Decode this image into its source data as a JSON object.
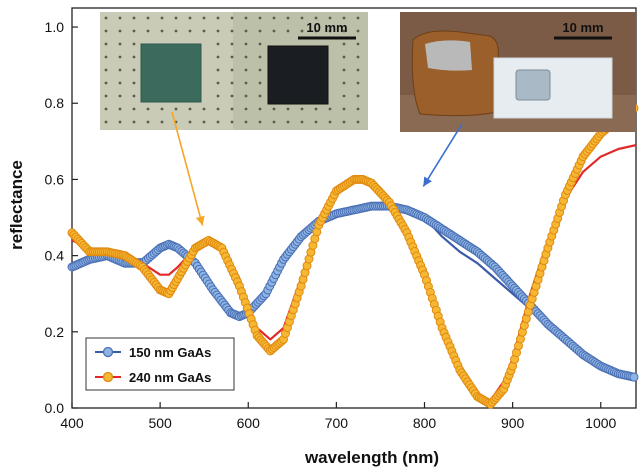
{
  "chart_data": {
    "type": "scatter",
    "title": "",
    "xlabel": "wavelength (nm)",
    "ylabel": "reflectance",
    "xlim": [
      400,
      1040
    ],
    "ylim": [
      0.0,
      1.05
    ],
    "x_ticks": [
      "400",
      "500",
      "600",
      "700",
      "800",
      "900",
      "1000"
    ],
    "y_ticks": [
      "0.0",
      "0.2",
      "0.4",
      "0.6",
      "0.8",
      "1.0"
    ],
    "grid": false,
    "legend_position": "bottom-left",
    "series": [
      {
        "name": "150 nm GaAs",
        "kind": "measured",
        "marker_fill": "#8eb4e3",
        "marker_edge": "#4a6fb5",
        "line_color": "#3b5ba8",
        "x": [
          400,
          420,
          440,
          460,
          480,
          500,
          510,
          520,
          540,
          560,
          580,
          590,
          600,
          620,
          640,
          660,
          680,
          700,
          720,
          740,
          760,
          780,
          800,
          820,
          840,
          860,
          880,
          900,
          920,
          940,
          960,
          980,
          1000,
          1020,
          1040
        ],
        "y": [
          0.37,
          0.39,
          0.4,
          0.38,
          0.38,
          0.42,
          0.43,
          0.42,
          0.38,
          0.31,
          0.25,
          0.24,
          0.25,
          0.3,
          0.39,
          0.45,
          0.49,
          0.51,
          0.52,
          0.53,
          0.53,
          0.52,
          0.5,
          0.47,
          0.44,
          0.41,
          0.37,
          0.32,
          0.27,
          0.22,
          0.18,
          0.14,
          0.11,
          0.09,
          0.08
        ]
      },
      {
        "name": "240 nm GaAs",
        "kind": "measured",
        "marker_fill": "#f6b733",
        "marker_edge": "#e08a10",
        "line_color": "#e02a2a",
        "x": [
          400,
          420,
          440,
          460,
          480,
          500,
          510,
          520,
          540,
          555,
          570,
          590,
          610,
          625,
          640,
          660,
          680,
          700,
          720,
          730,
          740,
          760,
          780,
          800,
          820,
          840,
          860,
          875,
          890,
          900,
          920,
          940,
          960,
          980,
          1000,
          1020,
          1040
        ],
        "y": [
          0.46,
          0.41,
          0.41,
          0.4,
          0.37,
          0.31,
          0.3,
          0.34,
          0.42,
          0.44,
          0.42,
          0.32,
          0.19,
          0.15,
          0.18,
          0.32,
          0.48,
          0.57,
          0.6,
          0.6,
          0.59,
          0.54,
          0.46,
          0.35,
          0.21,
          0.1,
          0.03,
          0.01,
          0.05,
          0.11,
          0.27,
          0.42,
          0.56,
          0.66,
          0.72,
          0.76,
          0.79
        ]
      }
    ],
    "fits": [
      {
        "for": "150 nm GaAs",
        "color": "#3b5ba8",
        "x": [
          400,
          420,
          440,
          460,
          480,
          500,
          510,
          520,
          540,
          560,
          580,
          600,
          620,
          640,
          660,
          680,
          700,
          720,
          740,
          760,
          780,
          800,
          820,
          840,
          860,
          880,
          900,
          920,
          940,
          960,
          980,
          1000,
          1020,
          1040
        ],
        "y": [
          0.38,
          0.4,
          0.41,
          0.39,
          0.39,
          0.42,
          0.43,
          0.42,
          0.38,
          0.31,
          0.25,
          0.25,
          0.3,
          0.39,
          0.45,
          0.49,
          0.51,
          0.52,
          0.53,
          0.53,
          0.52,
          0.5,
          0.45,
          0.41,
          0.38,
          0.34,
          0.3,
          0.26,
          0.22,
          0.18,
          0.14,
          0.11,
          0.09,
          0.08
        ]
      },
      {
        "for": "240 nm GaAs",
        "color": "#e02a2a",
        "x": [
          400,
          420,
          440,
          460,
          480,
          500,
          510,
          520,
          540,
          555,
          570,
          590,
          610,
          625,
          640,
          660,
          680,
          700,
          720,
          730,
          740,
          760,
          780,
          800,
          820,
          840,
          860,
          875,
          890,
          900,
          920,
          940,
          960,
          980,
          1000,
          1020,
          1040
        ],
        "y": [
          0.44,
          0.42,
          0.41,
          0.4,
          0.38,
          0.35,
          0.35,
          0.37,
          0.42,
          0.44,
          0.43,
          0.34,
          0.21,
          0.18,
          0.21,
          0.34,
          0.49,
          0.57,
          0.6,
          0.6,
          0.59,
          0.54,
          0.46,
          0.35,
          0.22,
          0.11,
          0.04,
          0.02,
          0.07,
          0.13,
          0.3,
          0.44,
          0.55,
          0.62,
          0.66,
          0.68,
          0.69
        ]
      }
    ],
    "insets": [
      {
        "scale_label": "10 mm",
        "description_colors": {
          "background": "#c8cab4",
          "sample_1": "#3a6b5c",
          "sample_2": "#1a1e22"
        },
        "arrow_color": "#f5a623",
        "arrow_target_x": 555,
        "arrow_target_y": 0.5
      },
      {
        "scale_label": "10 mm",
        "description_colors": {
          "background": "#7a5a44",
          "film": "#9a5f2c",
          "pad": "#e6ecf0",
          "sample": "#a9b9c6"
        },
        "arrow_color": "#3b6fcf",
        "arrow_target_x": 810,
        "arrow_target_y": 0.55
      }
    ]
  }
}
